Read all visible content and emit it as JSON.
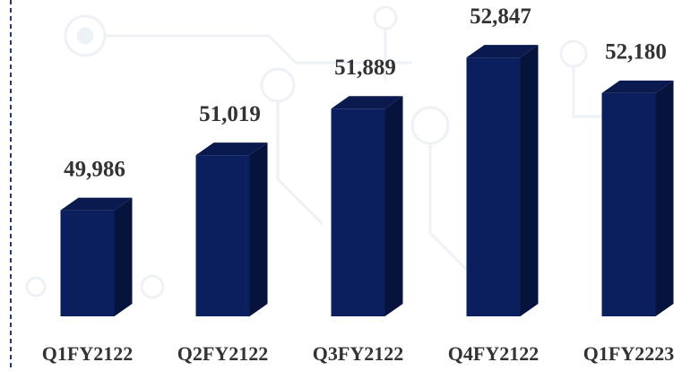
{
  "chart_data": {
    "type": "bar3d",
    "categories": [
      "Q1FY2122",
      "Q2FY2122",
      "Q3FY2122",
      "Q4FY2122",
      "Q1FY2223"
    ],
    "values": [
      49986,
      51019,
      51889,
      52847,
      52180
    ],
    "value_labels": [
      "49,986",
      "51,019",
      "51,889",
      "52,847",
      "52,180"
    ],
    "color": "#0b1f5e",
    "ylim": [
      48000,
      53000
    ]
  }
}
